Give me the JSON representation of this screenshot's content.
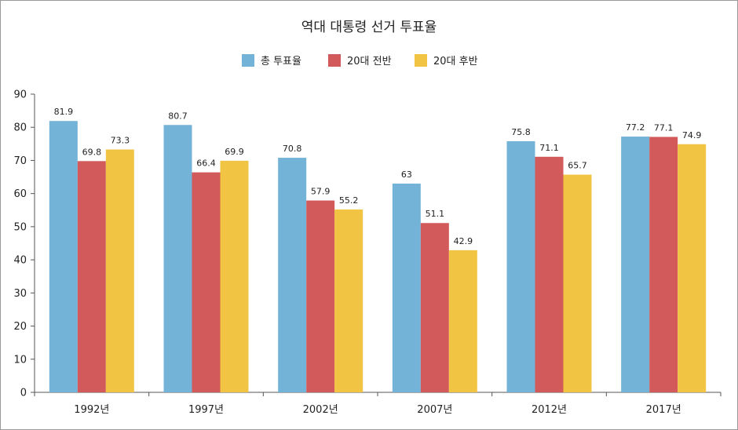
{
  "chart_data": {
    "type": "bar",
    "title": "역대 대통령 선거 투표율",
    "xlabel": "",
    "ylabel": "",
    "ylim": [
      0,
      90
    ],
    "yticks": [
      0,
      10,
      20,
      30,
      40,
      50,
      60,
      70,
      80,
      90
    ],
    "grid": false,
    "legend_position": "top",
    "categories": [
      "1992년",
      "1997년",
      "2002년",
      "2007년",
      "2012년",
      "2017년"
    ],
    "series": [
      {
        "name": "총 투표율",
        "color": "#74b3d8",
        "values": [
          81.9,
          80.7,
          70.8,
          63,
          75.8,
          77.2
        ],
        "labels": [
          "81.9",
          "80.7",
          "70.8",
          "63",
          "75.8",
          "77.2"
        ]
      },
      {
        "name": "20대 전반",
        "color": "#d35a5a",
        "values": [
          69.8,
          66.4,
          57.9,
          51.1,
          71.1,
          77.1
        ],
        "labels": [
          "69.8",
          "66.4",
          "57.9",
          "51.1",
          "71.1",
          "77.1"
        ]
      },
      {
        "name": "20대 후반",
        "color": "#f2c443",
        "values": [
          73.3,
          69.9,
          55.2,
          42.9,
          65.7,
          74.9
        ],
        "labels": [
          "73.3",
          "69.9",
          "55.2",
          "42.9",
          "65.7",
          "74.9"
        ]
      }
    ]
  }
}
